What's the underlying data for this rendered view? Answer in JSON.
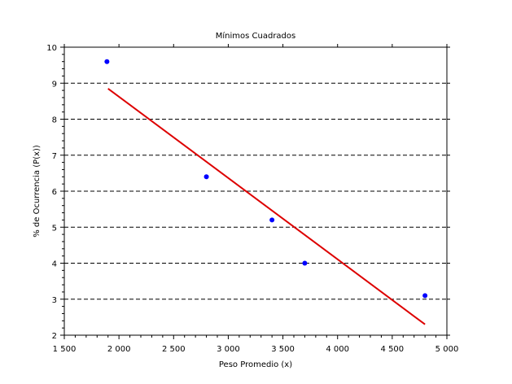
{
  "chart_data": {
    "type": "scatter",
    "title": "Mínimos Cuadrados",
    "xlabel": "Peso Promedio (x)",
    "ylabel": "% de Ocurrencia (P(x))",
    "xlim": [
      1500,
      5000
    ],
    "ylim": [
      2,
      10
    ],
    "x_ticks": [
      1500,
      2000,
      2500,
      3000,
      3500,
      4000,
      4500,
      5000
    ],
    "x_tick_labels": [
      "1 500",
      "2 000",
      "2 500",
      "3 000",
      "3 500",
      "4 000",
      "4 500",
      "5 000"
    ],
    "y_ticks": [
      2,
      3,
      4,
      5,
      6,
      7,
      8,
      9,
      10
    ],
    "y_tick_labels": [
      "2",
      "3",
      "4",
      "5",
      "6",
      "7",
      "8",
      "9",
      "10"
    ],
    "grid": "horizontal dashed",
    "legend": "none",
    "series": [
      {
        "kind": "points",
        "color": "#0000ff",
        "points": [
          {
            "x": 1890,
            "y": 9.6
          },
          {
            "x": 2800,
            "y": 6.4
          },
          {
            "x": 3400,
            "y": 5.2
          },
          {
            "x": 3700,
            "y": 4.0
          },
          {
            "x": 4800,
            "y": 3.1
          }
        ]
      },
      {
        "kind": "fit-line",
        "color": "#dd0000",
        "points": [
          {
            "x": 1900,
            "y": 8.85
          },
          {
            "x": 4800,
            "y": 2.3
          }
        ]
      }
    ]
  }
}
